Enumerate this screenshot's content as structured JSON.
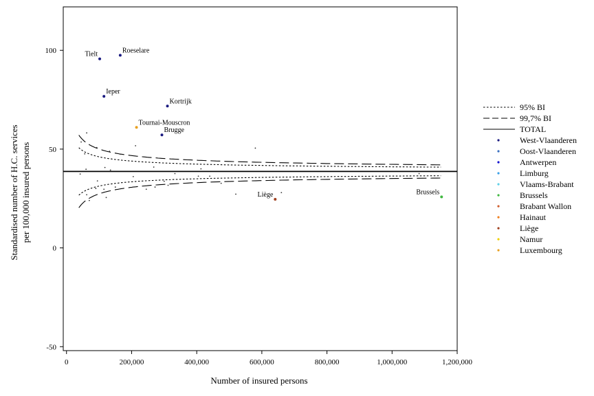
{
  "chart_data": {
    "type": "scatter",
    "title": "",
    "xlabel": "Number of insured persons",
    "ylabel": [
      "Standardised number of H.C. services",
      "per 100,000 insured persons"
    ],
    "xlim": [
      -10000,
      1200000
    ],
    "ylim": [
      -52,
      122
    ],
    "x_ticks": [
      0,
      200000,
      400000,
      600000,
      800000,
      1000000,
      1200000
    ],
    "x_tick_labels": [
      "0",
      "200,000",
      "400,000",
      "600,000",
      "800,000",
      "1,000,000",
      "1,200,000"
    ],
    "y_ticks": [
      -50,
      0,
      50,
      100
    ],
    "y_tick_labels": [
      "-50",
      "0",
      "50",
      "100"
    ],
    "grid": false,
    "legend_position": "right",
    "total": 38.7,
    "funnel": {
      "ci95": {
        "name": "95% BI",
        "z": 1.96
      },
      "ci997": {
        "name": "99,7% BI",
        "z": 3.0
      },
      "k": 3.78,
      "x_start": 38000,
      "x_end": 1150000
    },
    "legend": [
      {
        "label": "95% BI",
        "kind": "dotted"
      },
      {
        "label": "99,7% BI",
        "kind": "dashed"
      },
      {
        "label": "TOTAL",
        "kind": "solid"
      },
      {
        "label": "West-Vlaanderen",
        "kind": "dot",
        "color": "#1a1a80"
      },
      {
        "label": "Oost-Vlaanderen",
        "kind": "dot",
        "color": "#3a70c0"
      },
      {
        "label": "Antwerpen",
        "kind": "dot",
        "color": "#1414d0"
      },
      {
        "label": "Limburg",
        "kind": "dot",
        "color": "#3aa0e8"
      },
      {
        "label": "Vlaams-Brabant",
        "kind": "dot",
        "color": "#60d0e8"
      },
      {
        "label": "Brussels",
        "kind": "dot",
        "color": "#40b840"
      },
      {
        "label": "Brabant Wallon",
        "kind": "dot",
        "color": "#d06030"
      },
      {
        "label": "Hainaut",
        "kind": "dot",
        "color": "#f08020"
      },
      {
        "label": "Liège",
        "kind": "dot",
        "color": "#a04020"
      },
      {
        "label": "Namur",
        "kind": "dot",
        "color": "#f0d000"
      },
      {
        "label": "Luxembourg",
        "kind": "dot",
        "color": "#e8a020"
      }
    ],
    "labeled_points": [
      {
        "label": "Roeselare",
        "x": 165000,
        "y": 97.5,
        "color": "#1a1a80",
        "label_pos": "right"
      },
      {
        "label": "Tielt",
        "x": 102000,
        "y": 95.7,
        "color": "#1a1a80",
        "label_pos": "left"
      },
      {
        "label": "Ieper",
        "x": 115000,
        "y": 76.7,
        "color": "#1a1a80",
        "label_pos": "right"
      },
      {
        "label": "Kortrijk",
        "x": 310000,
        "y": 71.8,
        "color": "#1a1a80",
        "label_pos": "right"
      },
      {
        "label": "Tournai-Mouscron",
        "x": 215000,
        "y": 61.0,
        "color": "#e8a020",
        "label_pos": "right"
      },
      {
        "label": "Brugge",
        "x": 293000,
        "y": 57.2,
        "color": "#1a1a80",
        "label_pos": "right"
      },
      {
        "label": "Liège",
        "x": 641000,
        "y": 24.6,
        "color": "#a04020",
        "label_pos": "left"
      },
      {
        "label": "Brussels",
        "x": 1152000,
        "y": 25.8,
        "color": "#40b840",
        "label_pos": "left"
      }
    ],
    "other_points": [
      {
        "x": 42000,
        "y": 37.4
      },
      {
        "x": 45000,
        "y": 53.6
      },
      {
        "x": 56000,
        "y": 47.6
      },
      {
        "x": 60000,
        "y": 39.8
      },
      {
        "x": 62000,
        "y": 58.2
      },
      {
        "x": 62000,
        "y": 26.9
      },
      {
        "x": 70000,
        "y": 24.0
      },
      {
        "x": 90000,
        "y": 30.1
      },
      {
        "x": 93000,
        "y": 50.8
      },
      {
        "x": 95000,
        "y": 33.9
      },
      {
        "x": 115000,
        "y": 29.7
      },
      {
        "x": 118000,
        "y": 40.7
      },
      {
        "x": 122000,
        "y": 25.5
      },
      {
        "x": 132000,
        "y": 48.9
      },
      {
        "x": 135000,
        "y": 39.4
      },
      {
        "x": 150000,
        "y": 30.8
      },
      {
        "x": 165000,
        "y": 47.4
      },
      {
        "x": 205000,
        "y": 36.1
      },
      {
        "x": 212000,
        "y": 51.7
      },
      {
        "x": 245000,
        "y": 29.7
      },
      {
        "x": 268000,
        "y": 40.9
      },
      {
        "x": 272000,
        "y": 30.8
      },
      {
        "x": 300000,
        "y": 33.7
      },
      {
        "x": 312000,
        "y": 31.7
      },
      {
        "x": 333000,
        "y": 37.6
      },
      {
        "x": 405000,
        "y": 36.3
      },
      {
        "x": 413000,
        "y": 40.0
      },
      {
        "x": 440000,
        "y": 36.3
      },
      {
        "x": 475000,
        "y": 32.7
      },
      {
        "x": 520000,
        "y": 27.2
      },
      {
        "x": 580000,
        "y": 50.5
      },
      {
        "x": 660000,
        "y": 28.0
      },
      {
        "x": 1083000,
        "y": 37.6
      }
    ]
  }
}
